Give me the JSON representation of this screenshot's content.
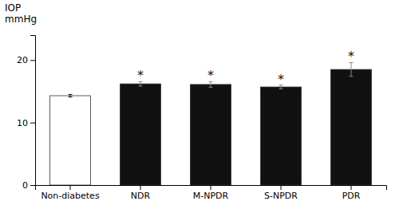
{
  "chart_data": {
    "type": "bar",
    "categories": [
      "Non-diabetes",
      "NDR",
      "M-NPDR",
      "S-NPDR",
      "PDR"
    ],
    "values": [
      14.3,
      16.2,
      16.1,
      15.7,
      18.5
    ],
    "errors": [
      0.2,
      0.35,
      0.45,
      0.3,
      1.1
    ],
    "colors": [
      "#ffffff",
      "#111111",
      "#111111",
      "#111111",
      "#111111"
    ],
    "ylabel": [
      "IOP",
      "mmHg"
    ],
    "annotations": [
      {
        "category": "NDR",
        "text": "*"
      },
      {
        "category": "M-NPDR",
        "text": "*"
      },
      {
        "category": "S-NPDR",
        "text": "*"
      },
      {
        "category": "PDR",
        "text": "*"
      }
    ],
    "ylim": [
      0,
      24
    ],
    "yticks": [
      0,
      10,
      20
    ],
    "grid": false
  }
}
